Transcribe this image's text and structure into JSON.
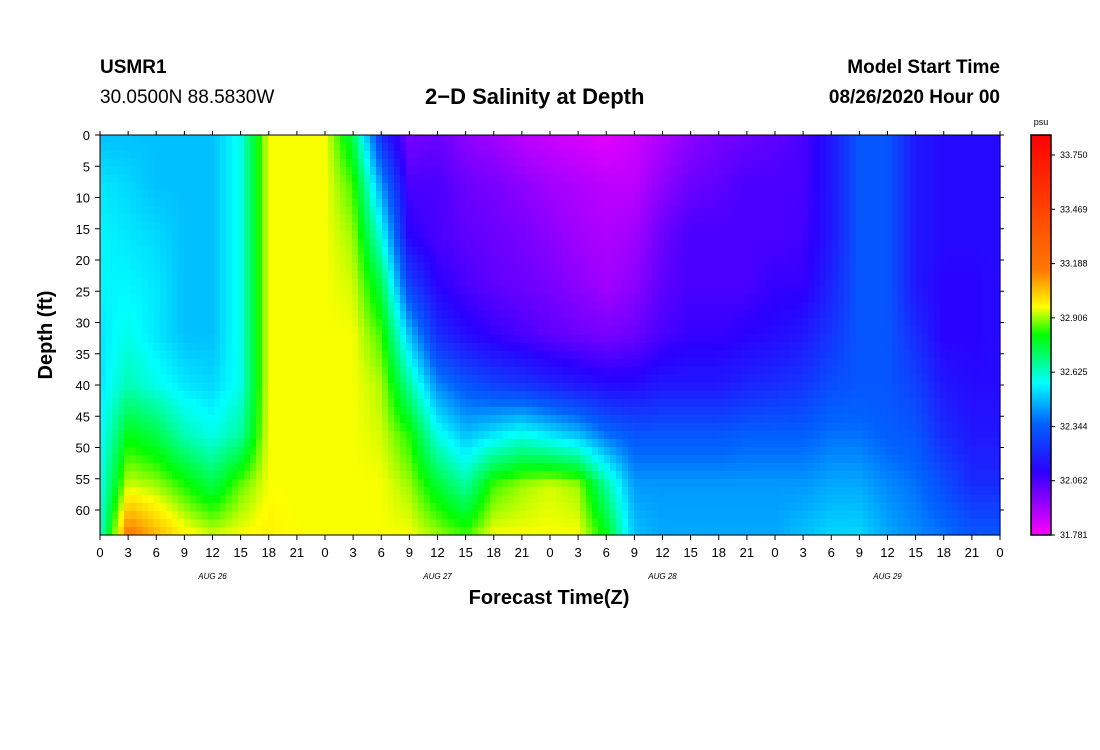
{
  "header": {
    "station": "USMR1",
    "coords": "30.0500N 88.5830W",
    "title": "2−D Salinity at Depth",
    "model_start_label": "Model Start Time",
    "model_start_value": "08/26/2020 Hour 00"
  },
  "chart_data": {
    "type": "heatmap",
    "title": "2−D Salinity at Depth",
    "xlabel": "Forecast Time(Z)",
    "ylabel": "Depth (ft)",
    "x_ticks": [
      "0",
      "3",
      "6",
      "9",
      "12",
      "15",
      "18",
      "21",
      "0",
      "3",
      "6",
      "9",
      "12",
      "15",
      "18",
      "21",
      "0",
      "3",
      "6",
      "9",
      "12",
      "15",
      "18",
      "21",
      "0",
      "3",
      "6",
      "9",
      "12",
      "15",
      "18",
      "21",
      "0"
    ],
    "x_date_labels": [
      {
        "label": "AUG 26",
        "hour": 12
      },
      {
        "label": "AUG 27",
        "hour": 36
      },
      {
        "label": "AUG 28",
        "hour": 60
      },
      {
        "label": "AUG 29",
        "hour": 84
      }
    ],
    "xlim_hours": [
      0,
      96
    ],
    "y_ticks": [
      "0",
      "5",
      "10",
      "15",
      "20",
      "25",
      "30",
      "35",
      "40",
      "45",
      "50",
      "55",
      "60"
    ],
    "ylim_ft": [
      0,
      64
    ],
    "colorbar": {
      "unit": "psu",
      "range": [
        31.781,
        33.75
      ],
      "labels": [
        "33.750",
        "33.469",
        "33.188",
        "32.906",
        "32.625",
        "32.344",
        "32.062",
        "31.781"
      ],
      "colors": [
        "#ff0000",
        "#ff6a00",
        "#ffff00",
        "#00ff00",
        "#00ffff",
        "#0064ff",
        "#2a00ff",
        "#ff00ff"
      ]
    },
    "field": {
      "time_hours": [
        0,
        3,
        6,
        9,
        12,
        15,
        18,
        21,
        24,
        27,
        30,
        33,
        36,
        39,
        42,
        45,
        48,
        51,
        54,
        57,
        60,
        63,
        66,
        69,
        72,
        75,
        78,
        81,
        84,
        87,
        90,
        93,
        96
      ],
      "depth_ft": [
        0,
        8,
        16,
        24,
        32,
        40,
        48,
        56,
        64
      ],
      "salinity_psu": [
        [
          32.45,
          32.5,
          32.52,
          32.52,
          32.5,
          32.5,
          32.52,
          32.54,
          32.56
        ],
        [
          32.45,
          32.48,
          32.5,
          32.52,
          32.55,
          32.6,
          32.75,
          32.88,
          33.1
        ],
        [
          32.45,
          32.45,
          32.48,
          32.5,
          32.5,
          32.55,
          32.7,
          32.85,
          33.0
        ],
        [
          32.45,
          32.45,
          32.45,
          32.45,
          32.45,
          32.5,
          32.6,
          32.78,
          32.92
        ],
        [
          32.45,
          32.45,
          32.45,
          32.45,
          32.45,
          32.48,
          32.55,
          32.7,
          32.88
        ],
        [
          32.55,
          32.55,
          32.55,
          32.55,
          32.55,
          32.55,
          32.62,
          32.82,
          32.9
        ],
        [
          32.9,
          32.9,
          32.9,
          32.9,
          32.9,
          32.9,
          32.9,
          32.9,
          32.92
        ],
        [
          32.9,
          32.9,
          32.9,
          32.9,
          32.9,
          32.9,
          32.9,
          32.9,
          32.9
        ],
        [
          32.9,
          32.9,
          32.9,
          32.9,
          32.9,
          32.9,
          32.9,
          32.9,
          32.9
        ],
        [
          32.7,
          32.8,
          32.85,
          32.88,
          32.9,
          32.9,
          32.9,
          32.9,
          32.9
        ],
        [
          32.2,
          32.4,
          32.55,
          32.7,
          32.8,
          32.86,
          32.88,
          32.9,
          32.9
        ],
        [
          31.98,
          32.05,
          32.1,
          32.25,
          32.45,
          32.62,
          32.78,
          32.85,
          32.9
        ],
        [
          32.0,
          32.05,
          32.05,
          32.1,
          32.2,
          32.38,
          32.55,
          32.72,
          32.85
        ],
        [
          31.95,
          32.0,
          32.02,
          32.05,
          32.12,
          32.3,
          32.45,
          32.62,
          32.8
        ],
        [
          31.92,
          31.98,
          32.0,
          32.02,
          32.08,
          32.25,
          32.5,
          32.8,
          32.9
        ],
        [
          31.88,
          31.95,
          31.98,
          32.0,
          32.05,
          32.22,
          32.55,
          32.85,
          32.9
        ],
        [
          31.86,
          31.92,
          31.95,
          31.98,
          32.02,
          32.18,
          32.5,
          32.88,
          32.9
        ],
        [
          31.84,
          31.9,
          31.92,
          31.95,
          32.0,
          32.15,
          32.45,
          32.85,
          32.9
        ],
        [
          31.82,
          31.88,
          31.9,
          31.92,
          31.98,
          32.12,
          32.35,
          32.62,
          32.75
        ],
        [
          31.85,
          31.88,
          31.92,
          31.95,
          32.0,
          32.12,
          32.3,
          32.4,
          32.45
        ],
        [
          31.9,
          31.95,
          32.0,
          32.02,
          32.05,
          32.15,
          32.3,
          32.4,
          32.42
        ],
        [
          31.95,
          32.0,
          32.05,
          32.05,
          32.08,
          32.15,
          32.3,
          32.4,
          32.42
        ],
        [
          31.98,
          32.02,
          32.05,
          32.05,
          32.08,
          32.15,
          32.3,
          32.4,
          32.42
        ],
        [
          32.0,
          32.05,
          32.05,
          32.05,
          32.1,
          32.18,
          32.32,
          32.4,
          32.42
        ],
        [
          32.02,
          32.05,
          32.05,
          32.08,
          32.12,
          32.2,
          32.32,
          32.4,
          32.42
        ],
        [
          32.05,
          32.05,
          32.06,
          32.08,
          32.15,
          32.22,
          32.32,
          32.4,
          32.45
        ],
        [
          32.15,
          32.15,
          32.15,
          32.18,
          32.22,
          32.28,
          32.35,
          32.42,
          32.48
        ],
        [
          32.3,
          32.3,
          32.3,
          32.3,
          32.3,
          32.3,
          32.35,
          32.42,
          32.48
        ],
        [
          32.3,
          32.3,
          32.3,
          32.3,
          32.3,
          32.3,
          32.32,
          32.38,
          32.42
        ],
        [
          32.15,
          32.15,
          32.15,
          32.15,
          32.2,
          32.25,
          32.3,
          32.35,
          32.38
        ],
        [
          32.12,
          32.12,
          32.12,
          32.1,
          32.1,
          32.15,
          32.2,
          32.28,
          32.35
        ],
        [
          32.12,
          32.12,
          32.12,
          32.1,
          32.1,
          32.12,
          32.15,
          32.2,
          32.3
        ],
        [
          32.12,
          32.12,
          32.12,
          32.12,
          32.12,
          32.12,
          32.15,
          32.2,
          32.3
        ]
      ]
    }
  }
}
